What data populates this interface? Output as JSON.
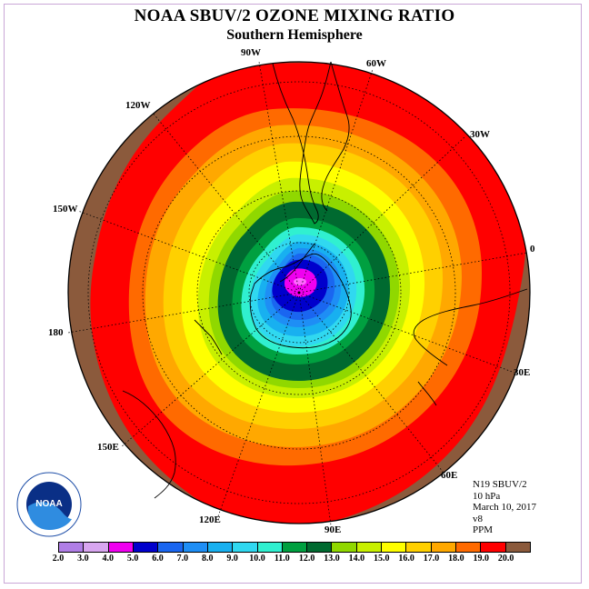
{
  "title": "NOAA SBUV/2 OZONE MIXING RATIO",
  "subtitle": "Southern Hemisphere",
  "logo": {
    "text": "NOAA",
    "ring_text": "NATIONAL OCEANIC AND ATMOSPHERIC ADMINISTRATION · U.S. DEPARTMENT OF COMMERCE"
  },
  "longitude_labels": [
    "90W",
    "60W",
    "120W",
    "30W",
    "150W",
    "0",
    "180",
    "30E",
    "150E",
    "60E",
    "120E",
    "90E"
  ],
  "info": {
    "instrument": "N19 SBUV/2",
    "level": "10 hPa",
    "date": "March 10, 2017",
    "version": "v8",
    "units": "PPM"
  },
  "colorbar": {
    "ticks": [
      "2.0",
      "3.0",
      "4.0",
      "5.0",
      "6.0",
      "7.0",
      "8.0",
      "9.0",
      "10.0",
      "11.0",
      "12.0",
      "13.0",
      "14.0",
      "15.0",
      "16.0",
      "17.0",
      "18.0",
      "19.0",
      "20.0"
    ],
    "colors": [
      "#b07ee6",
      "#d8a6f0",
      "#f000f0",
      "#0000cc",
      "#1a66f0",
      "#1e8ef5",
      "#18b0f0",
      "#30d8f0",
      "#30f0d0",
      "#00a040",
      "#006a30",
      "#90d800",
      "#c8f000",
      "#ffff00",
      "#ffd000",
      "#ffa800",
      "#ff6a00",
      "#ff0000",
      "#8b5a3c"
    ]
  },
  "field": {
    "center": "4.0",
    "levels": [
      "5.0",
      "6.0",
      "7.0",
      "8.0",
      "9.0",
      "10.0",
      "11.0",
      "12.0",
      "13.0",
      "14.0",
      "15.0",
      "16.0",
      "17.0",
      "18.0",
      "19.0"
    ]
  }
}
